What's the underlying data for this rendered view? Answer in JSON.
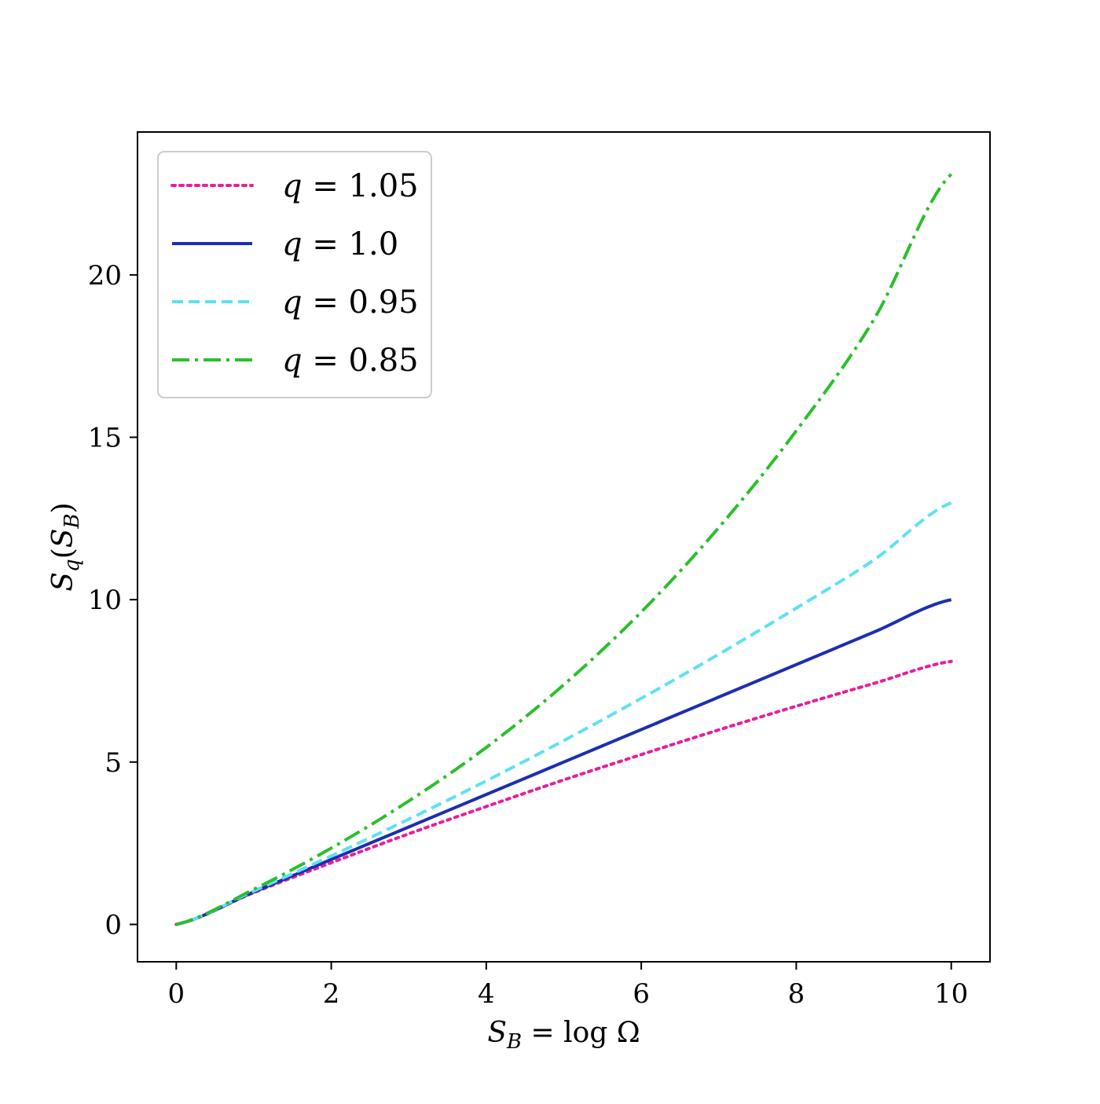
{
  "chart_data": {
    "type": "line",
    "xlabel": {
      "var": "S",
      "sub": "B",
      "rest": " = log Ω"
    },
    "ylabel": {
      "var": "S",
      "sub": "q",
      "open": "(",
      "inner_var": "S",
      "inner_sub": "B",
      "close": ")"
    },
    "xlim": [
      -0.5,
      10.5
    ],
    "ylim": [
      -1.15,
      24.4
    ],
    "x_ticks": [
      0,
      2,
      4,
      6,
      8,
      10
    ],
    "x_tick_labels": [
      "0",
      "2",
      "4",
      "6",
      "8",
      "10"
    ],
    "y_ticks": [
      0,
      5,
      10,
      15,
      20
    ],
    "y_tick_labels": [
      "0",
      "5",
      "10",
      "15",
      "20"
    ],
    "grid": false,
    "legend_position": "upper-left",
    "x": [
      0,
      1,
      2,
      3,
      4,
      5,
      6,
      7,
      8,
      9,
      10
    ],
    "series": [
      {
        "name": "q = 1.05",
        "legend_var": "q",
        "legend_rest": " = 1.05",
        "q": 1.05,
        "style": "dotted",
        "color": "#e91e9a",
        "values": [
          0,
          0.98,
          1.9,
          2.79,
          3.63,
          4.45,
          5.23,
          5.99,
          6.72,
          7.42,
          8.1
        ]
      },
      {
        "name": "q = 1.0",
        "legend_var": "q",
        "legend_rest": " = 1.0",
        "q": 1.0,
        "style": "solid",
        "color": "#1c2eb3",
        "values": [
          0,
          1,
          2,
          3,
          4,
          5,
          6,
          7,
          8,
          9,
          10
        ]
      },
      {
        "name": "q = 0.95",
        "legend_var": "q",
        "legend_rest": " = 0.95",
        "q": 0.95,
        "style": "dashed",
        "color": "#5ee1f2",
        "values": [
          0,
          1.03,
          2.11,
          3.24,
          4.42,
          5.66,
          6.96,
          8.32,
          9.74,
          11.22,
          12.98
        ]
      },
      {
        "name": "q = 0.85",
        "legend_var": "q",
        "legend_rest": " = 0.85",
        "q": 0.85,
        "style": "dashdot",
        "color": "#2bbf2b",
        "values": [
          0,
          1.08,
          2.35,
          3.8,
          5.45,
          7.38,
          9.62,
          12.22,
          15.2,
          18.62,
          23.1
        ]
      }
    ]
  }
}
